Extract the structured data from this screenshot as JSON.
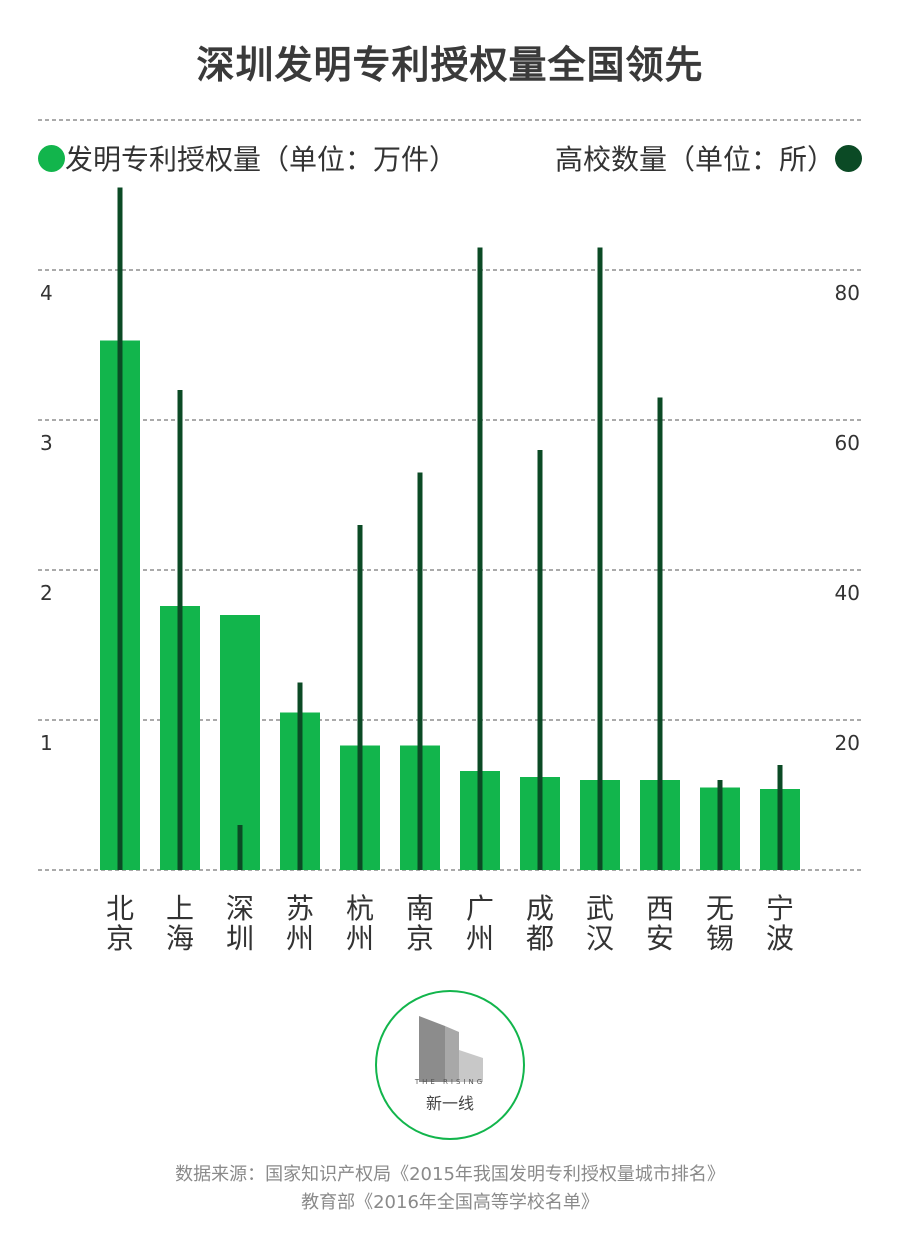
{
  "title": "深圳发明专利授权量全国领先",
  "legend": {
    "left_label": "发明专利授权量（单位：万件）",
    "right_label": "高校数量（单位：所）",
    "left_color": "#12b54c",
    "right_color": "#0b4a25"
  },
  "chart_data": {
    "type": "bar",
    "title": "深圳发明专利授权量全国领先",
    "categories": [
      "北京",
      "上海",
      "深圳",
      "苏州",
      "杭州",
      "南京",
      "广州",
      "成都",
      "武汉",
      "西安",
      "无锡",
      "宁波"
    ],
    "series": [
      {
        "name": "发明专利授权量（单位：万件）",
        "axis": "left",
        "color": "#12b54c",
        "values": [
          3.53,
          1.76,
          1.7,
          1.05,
          0.83,
          0.83,
          0.66,
          0.62,
          0.6,
          0.6,
          0.55,
          0.54
        ]
      },
      {
        "name": "高校数量（单位：所）",
        "axis": "right",
        "color": "#0b4a25",
        "values": [
          91,
          64,
          6,
          25,
          46,
          53,
          83,
          56,
          83,
          63,
          12,
          14
        ]
      }
    ],
    "y_left": {
      "ticks": [
        1,
        2,
        3,
        4
      ],
      "ylim": [
        0,
        4.6
      ]
    },
    "y_right": {
      "ticks": [
        20,
        40,
        60,
        80
      ],
      "ylim": [
        0,
        92
      ]
    },
    "grid": true,
    "legend_position": "top"
  },
  "logo": {
    "en": "THE RISING",
    "cn": "新一线"
  },
  "source": {
    "line1": "数据来源：国家知识产权局《2015年我国发明专利授权量城市排名》",
    "line2": "教育部《2016年全国高等学校名单》"
  }
}
